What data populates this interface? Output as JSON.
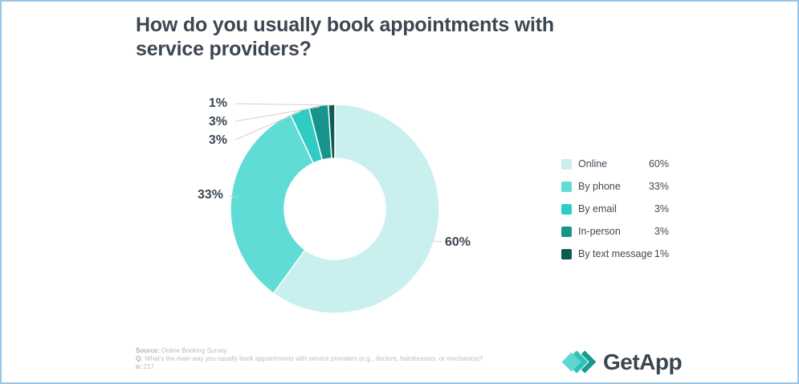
{
  "chart_data": {
    "type": "pie",
    "donut": true,
    "title": "How do you usually book appointments with service providers?",
    "start_angle_deg": -90,
    "direction": "clockwise",
    "legend_position": "right",
    "series": [
      {
        "name": "Online",
        "value": 60,
        "value_label": "60%",
        "color": "#c9efee"
      },
      {
        "name": "By phone",
        "value": 33,
        "value_label": "33%",
        "color": "#5fdcd5"
      },
      {
        "name": "By email",
        "value": 3,
        "value_label": "3%",
        "color": "#2fccc4"
      },
      {
        "name": "In-person",
        "value": 3,
        "value_label": "3%",
        "color": "#17958d"
      },
      {
        "name": "By text message",
        "value": 1,
        "value_label": "1%",
        "color": "#0d5b54"
      }
    ]
  },
  "footnote": {
    "source_prefix": "Source:",
    "source_text": " Online Booking Survey",
    "q_prefix": "Q:",
    "q_text": " What's the main way you usually book appointments with service providers (e.g., doctors, hairdressers, or mechanics)?",
    "n_prefix": "n:",
    "n_text": " 217"
  },
  "branding": {
    "logo_text": "GetApp"
  },
  "colors": {
    "border": "#96c5ea",
    "title": "#3d4752",
    "callout_label": "#3d4751",
    "legend_text": "#3f4a55",
    "footnote": "#b7bdc3",
    "leader_line": "#dacfcf",
    "slice_gap": "#ffffff"
  }
}
